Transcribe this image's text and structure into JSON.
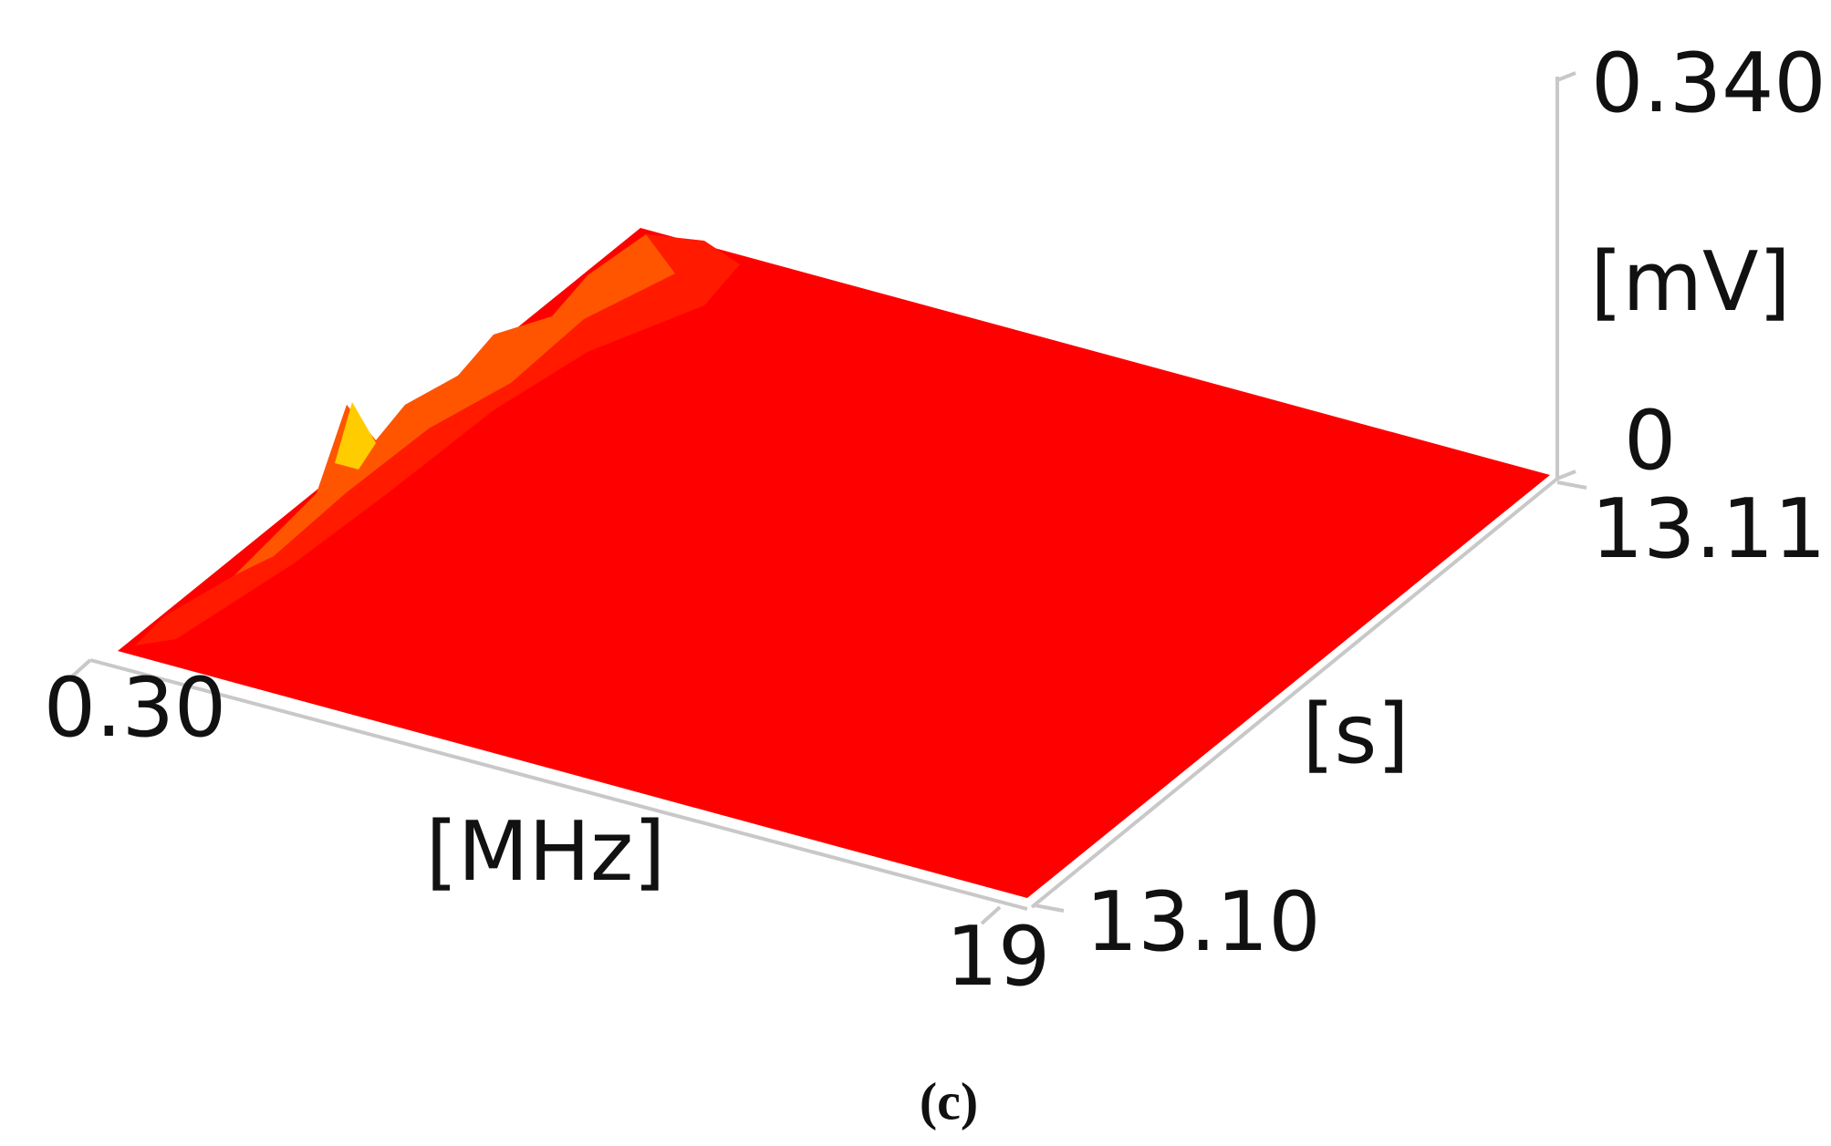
{
  "chart_data": {
    "type": "surface3d",
    "caption": "(c)",
    "x_label": "[MHz]",
    "y_label": "[s]",
    "z_label": "[mV]",
    "xlim": [
      0.3,
      19
    ],
    "xticks": [
      {
        "value": 0.3,
        "label": "0.30"
      },
      19
    ],
    "ylim": [
      13.1,
      13.11
    ],
    "yticks": [
      {
        "value": 13.1,
        "label": "13.10"
      },
      13.11
    ],
    "zlim": [
      0,
      0.34
    ],
    "zticks": [
      0,
      {
        "value": 0.34,
        "label": "0.340"
      }
    ],
    "color": "#ff0000"
  }
}
